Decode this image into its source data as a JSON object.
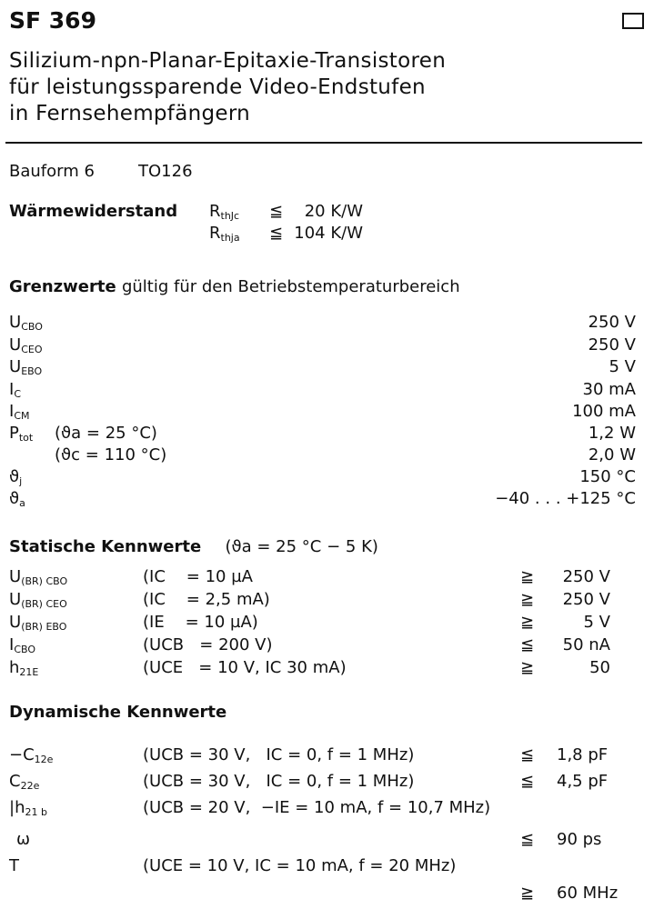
{
  "header": {
    "title": "SF 369",
    "subtitle_lines": [
      "Silizium-npn-Planar-Epitaxie-Transistoren",
      "für leistungssparende Video-Endstufen",
      "in Fernsehempfängern"
    ],
    "checkbox_icon": "empty-square"
  },
  "package": {
    "label": "Bauform 6",
    "type": "TO126"
  },
  "thermal": {
    "label": "Wärmewiderstand",
    "rows": [
      {
        "sym": "R",
        "sub": "thJc",
        "rel": "≦",
        "value": "20 K/W"
      },
      {
        "sym": "R",
        "sub": "thja",
        "rel": "≦",
        "value": "104 K/W"
      }
    ]
  },
  "limits": {
    "heading_bold": "Grenzwerte",
    "heading_rest": "gültig für den Betriebstemperaturbereich",
    "rows": [
      {
        "sym": "U",
        "sub": "CBO",
        "cond": "",
        "value": "250 V"
      },
      {
        "sym": "U",
        "sub": "CEO",
        "cond": "",
        "value": "250 V"
      },
      {
        "sym": "U",
        "sub": "EBO",
        "cond": "",
        "value": "5 V"
      },
      {
        "sym": "I",
        "sub": "C",
        "cond": "",
        "value": "30 mA"
      },
      {
        "sym": "I",
        "sub": "CM",
        "cond": "",
        "value": "100 mA"
      },
      {
        "sym": "P",
        "sub": "tot",
        "cond": "(ϑa = 25 °C)",
        "value": "1,2 W"
      },
      {
        "sym": "",
        "sub": "",
        "cond": "(ϑc = 110 °C)",
        "value": "2,0 W"
      },
      {
        "sym": "ϑ",
        "sub": "j",
        "cond": "",
        "value": "150 °C"
      },
      {
        "sym": "ϑ",
        "sub": "a",
        "cond": "",
        "value": "−40 . . . +125 °C"
      }
    ]
  },
  "static": {
    "heading_bold": "Statische Kennwerte",
    "heading_rest": "(ϑa = 25 °C − 5 K)",
    "rows": [
      {
        "sym": "U",
        "sub": "(BR) CBO",
        "cond": "(IC    = 10 µA",
        "rel": "≧",
        "value": "250 V"
      },
      {
        "sym": "U",
        "sub": "(BR) CEO",
        "cond": "(IC    = 2,5 mA)",
        "rel": "≧",
        "value": "250 V"
      },
      {
        "sym": "U",
        "sub": "(BR) EBO",
        "cond": "(IE    = 10 µA)",
        "rel": "≧",
        "value": "5 V"
      },
      {
        "sym": "I",
        "sub": "CBO",
        "cond": "(UCB   = 200 V)",
        "rel": "≦",
        "value": "50 nA"
      },
      {
        "sym": "h",
        "sub": "21E",
        "cond": "(UCE   = 10 V, IC 30 mA)",
        "rel": "≧",
        "value": "50"
      }
    ]
  },
  "dynamic": {
    "heading_bold": "Dynamische Kennwerte",
    "rows": [
      {
        "sym": "−C",
        "sub": "12e",
        "cond": "(UCB = 30 V,   IC = 0, f = 1 MHz)",
        "rel": "≦",
        "value": "1,8 pF"
      },
      {
        "sym": "C",
        "sub": "22e",
        "cond": "(UCB = 30 V,   IC = 0, f = 1 MHz)",
        "rel": "≦",
        "value": "4,5 pF"
      },
      {
        "sym": "|h",
        "sub": "21 b",
        "cond": "(UCB = 20 V,  −IE = 10 mA, f = 10,7 MHz)",
        "rel": "",
        "value": ""
      },
      {
        "sym": "ω",
        "sub": "",
        "cond": "",
        "rel": "≦",
        "value": "90 ps"
      },
      {
        "sym": "T",
        "sub": "",
        "cond": "(UCE = 10 V, IC = 10 mA, f = 20 MHz)",
        "rel": "",
        "value": ""
      },
      {
        "sym": "",
        "sub": "",
        "cond": "",
        "rel": "≧",
        "value": "60 MHz"
      }
    ]
  }
}
